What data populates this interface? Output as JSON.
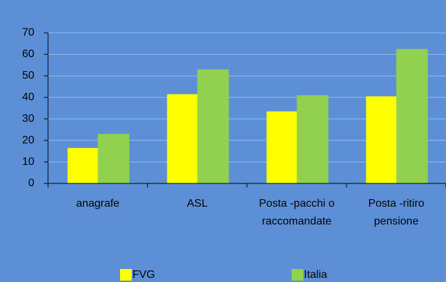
{
  "chart_data": {
    "type": "bar",
    "categories": [
      "anagrafe",
      "ASL",
      "Posta -pacchi o raccomandate",
      "Posta -ritiro pensione"
    ],
    "series": [
      {
        "name": "FVG",
        "color": "#ffff00",
        "values": [
          16.5,
          41.5,
          33.5,
          40.5
        ]
      },
      {
        "name": "Italia",
        "color": "#92d050",
        "values": [
          23,
          53,
          41,
          62.5
        ]
      }
    ],
    "ylim": [
      0,
      70
    ],
    "yticks": [
      0,
      10,
      20,
      30,
      40,
      50,
      60,
      70
    ],
    "grid": true,
    "legend": "bottom"
  }
}
